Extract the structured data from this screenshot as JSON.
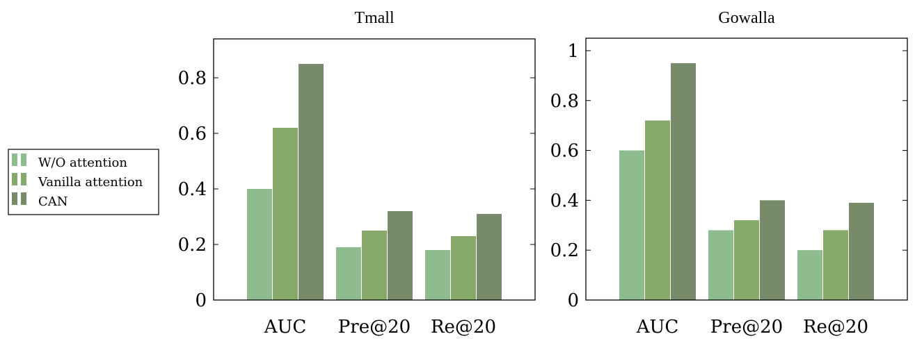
{
  "chart_data": [
    {
      "type": "bar",
      "title": "Tmall",
      "categories": [
        "AUC",
        "Pre@20",
        "Re@20"
      ],
      "series": [
        {
          "name": "W/O attention",
          "values": [
            0.4,
            0.19,
            0.18
          ]
        },
        {
          "name": "Vanilla attention",
          "values": [
            0.62,
            0.25,
            0.23
          ]
        },
        {
          "name": "CAN",
          "values": [
            0.85,
            0.32,
            0.31
          ]
        }
      ],
      "ylim": [
        0,
        0.94
      ],
      "yticks": [
        0,
        0.2,
        0.4,
        0.6,
        0.8
      ],
      "ytick_labels": [
        "0",
        "0.2",
        "0.4",
        "0.6",
        "0.8"
      ]
    },
    {
      "type": "bar",
      "title": "Gowalla",
      "categories": [
        "AUC",
        "Pre@20",
        "Re@20"
      ],
      "series": [
        {
          "name": "W/O attention",
          "values": [
            0.6,
            0.28,
            0.2
          ]
        },
        {
          "name": "Vanilla attention",
          "values": [
            0.72,
            0.32,
            0.28
          ]
        },
        {
          "name": "CAN",
          "values": [
            0.95,
            0.4,
            0.39
          ]
        }
      ],
      "ylim": [
        0,
        1.05
      ],
      "yticks": [
        0,
        0.2,
        0.4,
        0.6,
        0.8,
        1
      ],
      "ytick_labels": [
        "0",
        "0.2",
        "0.4",
        "0.6",
        "0.8",
        "1"
      ]
    }
  ],
  "legend": {
    "items": [
      {
        "label": "W/O attention",
        "color": "#8fbc8f"
      },
      {
        "label": "Vanilla attention",
        "color": "#86a96a"
      },
      {
        "label": "CAN",
        "color": "#778a6a"
      }
    ]
  },
  "colors": [
    "#8fbc8f",
    "#86a96a",
    "#778a6a"
  ]
}
